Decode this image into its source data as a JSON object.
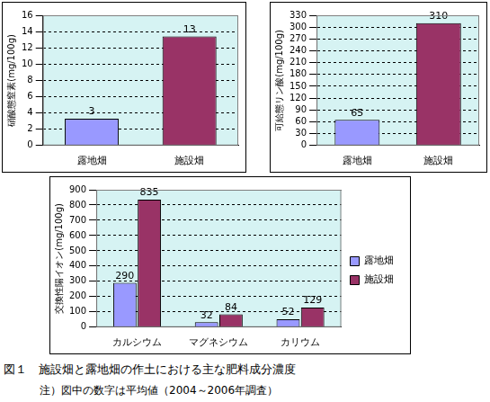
{
  "chart_data": [
    {
      "type": "bar",
      "y_label": "硝酸態窒素(mg/100g)",
      "categories": [
        "露地畑",
        "施設畑"
      ],
      "values": [
        3.3,
        13.4
      ],
      "value_labels": [
        "3",
        "13"
      ],
      "colors": [
        "#9999ff",
        "#993366"
      ],
      "ylim": [
        0,
        16
      ],
      "yticks": [
        0,
        2,
        4,
        6,
        8,
        10,
        12,
        14,
        16
      ],
      "grid": true,
      "data_labels": true
    },
    {
      "type": "bar",
      "y_label": "可給態リン酸(mg/100g)",
      "categories": [
        "露地畑",
        "施設畑"
      ],
      "values": [
        65,
        310
      ],
      "colors": [
        "#9999ff",
        "#993366"
      ],
      "ylim": [
        0,
        330
      ],
      "yticks": [
        0,
        30,
        60,
        90,
        120,
        150,
        180,
        210,
        240,
        270,
        300,
        330
      ],
      "grid": true,
      "data_labels": true
    },
    {
      "type": "bar",
      "y_label": "交換性陽イオン(mg/100g)",
      "categories": [
        "カルシウム",
        "マグネシウム",
        "カリウム"
      ],
      "series": [
        {
          "name": "露地畑",
          "color": "#9999ff",
          "values": [
            290,
            32,
            52
          ]
        },
        {
          "name": "施設畑",
          "color": "#993366",
          "values": [
            835,
            84,
            129
          ]
        }
      ],
      "ylim": [
        0,
        900
      ],
      "yticks": [
        0,
        100,
        200,
        300,
        400,
        500,
        600,
        700,
        800,
        900
      ],
      "grid": true,
      "data_labels": true,
      "legend": "right"
    }
  ],
  "caption": "図１　施設畑と露地畑の作土における主な肥料成分濃度",
  "note": "注）図中の数字は平均値（2004～2006年調査）"
}
